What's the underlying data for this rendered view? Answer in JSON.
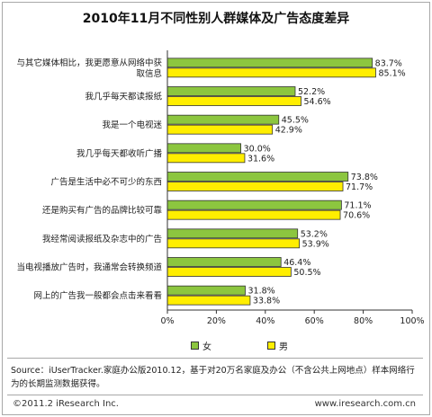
{
  "chart_data": {
    "type": "bar",
    "orientation": "horizontal",
    "title": "2010年11月不同性别人群媒体及广告态度差异",
    "categories": [
      "与其它媒体相比，我更愿意从网络中获取信息",
      "我几乎每天都读报纸",
      "我是一个电视迷",
      "我几乎每天都收听广播",
      "广告是生活中必不可少的东西",
      "还是购买有广告的品牌比较可靠",
      "我经常阅读报纸及杂志中的广告",
      "当电视播放广告时，我通常会转换频道",
      "网上的广告我一般都会点击来看看"
    ],
    "series": [
      {
        "name": "女",
        "color": "#8cc63f",
        "values": [
          83.7,
          52.2,
          45.5,
          30.0,
          73.8,
          71.1,
          53.2,
          46.4,
          31.8
        ],
        "labels": [
          "83.7%",
          "52.2%",
          "45.5%",
          "30.0%",
          "73.8%",
          "71.1%",
          "53.2%",
          "46.4%",
          "31.8%"
        ]
      },
      {
        "name": "男",
        "color": "#ffee00",
        "values": [
          85.1,
          54.6,
          42.9,
          31.6,
          71.7,
          70.6,
          53.9,
          50.5,
          33.8
        ],
        "labels": [
          "85.1%",
          "54.6%",
          "42.9%",
          "31.6%",
          "71.7%",
          "70.6%",
          "53.9%",
          "50.5%",
          "33.8%"
        ]
      }
    ],
    "xlim": [
      0,
      100
    ],
    "xticks": [
      "0%",
      "20%",
      "40%",
      "60%",
      "80%",
      "100%"
    ],
    "grid": false,
    "legend_position": "bottom-left"
  },
  "source": "Source：iUserTracker.家庭办公版2010.12，基于对20万名家庭及办公（不含公共上网地点）样本网络行为的长期监测数据获得。",
  "footer": {
    "copyright": "©2011.2 iResearch Inc.",
    "website": "www.iresearch.com.cn"
  }
}
